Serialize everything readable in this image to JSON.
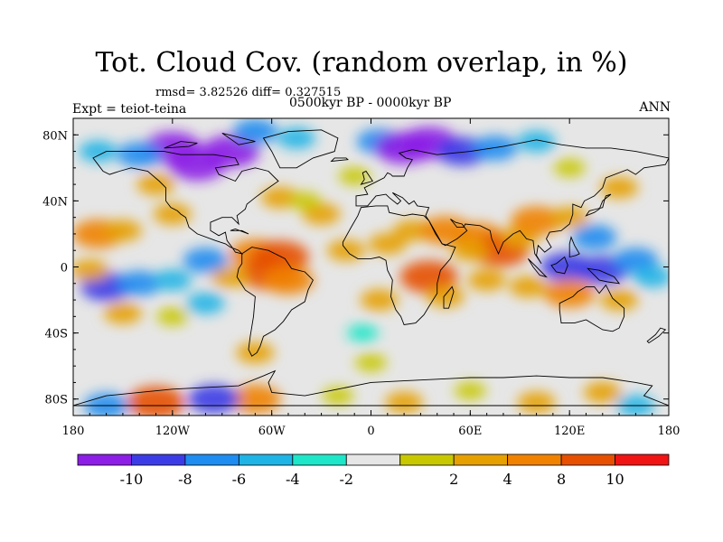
{
  "figure": {
    "title": "Tot. Cloud Cov. (random overlap, in %)",
    "stats": "rmsd= 3.82526 diff= 0.327515",
    "experiment": "Expt = teiot-teina",
    "period": "0500kyr BP - 0000kyr BP",
    "season": "ANN"
  },
  "map": {
    "projection": "cylindrical-equidistant",
    "lon_range": [
      -180,
      180
    ],
    "lat_range": [
      -90,
      90
    ],
    "lon_ticks": [
      {
        "value": -180,
        "label": "180"
      },
      {
        "value": -120,
        "label": "120W"
      },
      {
        "value": -60,
        "label": "60W"
      },
      {
        "value": 0,
        "label": "0"
      },
      {
        "value": 60,
        "label": "60E"
      },
      {
        "value": 120,
        "label": "120E"
      },
      {
        "value": 180,
        "label": "180"
      }
    ],
    "lat_ticks": [
      {
        "value": 80,
        "label": "80N"
      },
      {
        "value": 40,
        "label": "40N"
      },
      {
        "value": 0,
        "label": "0"
      },
      {
        "value": -40,
        "label": "40S"
      },
      {
        "value": -80,
        "label": "80S"
      }
    ],
    "neutral_color": "#e6e6e6",
    "coastline_color": "#000000"
  },
  "colorbar": {
    "colors": [
      "#8c1ee6",
      "#3c3ce6",
      "#1e8cf0",
      "#1eb4e6",
      "#1ee6c8",
      "#e6e6e6",
      "#c8c800",
      "#e6a000",
      "#f08200",
      "#e65000",
      "#f01414"
    ],
    "labels": [
      "-10",
      "-8",
      "-6",
      "-4",
      "-2",
      "2",
      "4",
      "8",
      "10"
    ]
  },
  "anomaly_field": [
    {
      "lon": -120,
      "lat": 72,
      "value": -10
    },
    {
      "lon": -105,
      "lat": 62,
      "value": -10
    },
    {
      "lon": -85,
      "lat": 70,
      "value": -10
    },
    {
      "lon": -140,
      "lat": 68,
      "value": -6
    },
    {
      "lon": -70,
      "lat": 82,
      "value": -6
    },
    {
      "lon": -45,
      "lat": 78,
      "value": -4
    },
    {
      "lon": 5,
      "lat": 76,
      "value": -6
    },
    {
      "lon": 20,
      "lat": 72,
      "value": -10
    },
    {
      "lon": 35,
      "lat": 75,
      "value": -10
    },
    {
      "lon": 55,
      "lat": 70,
      "value": -8
    },
    {
      "lon": 75,
      "lat": 72,
      "value": -6
    },
    {
      "lon": 100,
      "lat": 76,
      "value": -4
    },
    {
      "lon": -165,
      "lat": 70,
      "value": -4
    },
    {
      "lon": -130,
      "lat": 50,
      "value": 4
    },
    {
      "lon": -165,
      "lat": 20,
      "value": 8
    },
    {
      "lon": -150,
      "lat": 22,
      "value": 4
    },
    {
      "lon": -120,
      "lat": 32,
      "value": 4
    },
    {
      "lon": -55,
      "lat": 42,
      "value": 4
    },
    {
      "lon": -30,
      "lat": 32,
      "value": 4
    },
    {
      "lon": -40,
      "lat": 40,
      "value": 2
    },
    {
      "lon": -70,
      "lat": 8,
      "value": 8
    },
    {
      "lon": -55,
      "lat": 6,
      "value": 10
    },
    {
      "lon": -62,
      "lat": -4,
      "value": 10
    },
    {
      "lon": -50,
      "lat": -8,
      "value": 8
    },
    {
      "lon": -85,
      "lat": -6,
      "value": 4
    },
    {
      "lon": -100,
      "lat": 4,
      "value": -6
    },
    {
      "lon": -160,
      "lat": -12,
      "value": -8
    },
    {
      "lon": -140,
      "lat": -10,
      "value": -6
    },
    {
      "lon": -120,
      "lat": -8,
      "value": -4
    },
    {
      "lon": -170,
      "lat": -2,
      "value": 4
    },
    {
      "lon": -150,
      "lat": -28,
      "value": 4
    },
    {
      "lon": -120,
      "lat": -30,
      "value": 2
    },
    {
      "lon": -100,
      "lat": -22,
      "value": -4
    },
    {
      "lon": -15,
      "lat": 10,
      "value": 4
    },
    {
      "lon": 10,
      "lat": 14,
      "value": 4
    },
    {
      "lon": 25,
      "lat": 22,
      "value": 4
    },
    {
      "lon": 45,
      "lat": 22,
      "value": 8
    },
    {
      "lon": 65,
      "lat": 18,
      "value": 8
    },
    {
      "lon": 78,
      "lat": 10,
      "value": 10
    },
    {
      "lon": 60,
      "lat": 10,
      "value": 4
    },
    {
      "lon": 90,
      "lat": 18,
      "value": 4
    },
    {
      "lon": 100,
      "lat": 28,
      "value": 8
    },
    {
      "lon": 120,
      "lat": 30,
      "value": 4
    },
    {
      "lon": 118,
      "lat": 0,
      "value": -8
    },
    {
      "lon": 140,
      "lat": -2,
      "value": -8
    },
    {
      "lon": 160,
      "lat": 4,
      "value": -6
    },
    {
      "lon": 170,
      "lat": -6,
      "value": -4
    },
    {
      "lon": 135,
      "lat": 18,
      "value": -6
    },
    {
      "lon": 150,
      "lat": -20,
      "value": 4
    },
    {
      "lon": 120,
      "lat": -16,
      "value": 8
    },
    {
      "lon": 95,
      "lat": -12,
      "value": 4
    },
    {
      "lon": 70,
      "lat": -8,
      "value": 4
    },
    {
      "lon": 35,
      "lat": -6,
      "value": 10
    },
    {
      "lon": 45,
      "lat": -18,
      "value": 4
    },
    {
      "lon": 5,
      "lat": -20,
      "value": 4
    },
    {
      "lon": -5,
      "lat": -40,
      "value": -2
    },
    {
      "lon": -70,
      "lat": -52,
      "value": 4
    },
    {
      "lon": 0,
      "lat": -58,
      "value": 2
    },
    {
      "lon": -130,
      "lat": -82,
      "value": 10
    },
    {
      "lon": -70,
      "lat": -80,
      "value": 8
    },
    {
      "lon": -95,
      "lat": -80,
      "value": -8
    },
    {
      "lon": -160,
      "lat": -84,
      "value": -6
    },
    {
      "lon": 20,
      "lat": -82,
      "value": 4
    },
    {
      "lon": 100,
      "lat": -82,
      "value": 4
    },
    {
      "lon": 140,
      "lat": -76,
      "value": 4
    },
    {
      "lon": 160,
      "lat": -84,
      "value": -4
    },
    {
      "lon": -20,
      "lat": -78,
      "value": 2
    },
    {
      "lon": 60,
      "lat": -75,
      "value": 2
    },
    {
      "lon": 150,
      "lat": 48,
      "value": 4
    },
    {
      "lon": -10,
      "lat": 55,
      "value": 2
    },
    {
      "lon": 120,
      "lat": 60,
      "value": 2
    }
  ],
  "coastlines": [
    [
      [
        -168,
        66
      ],
      [
        -160,
        70
      ],
      [
        -140,
        70
      ],
      [
        -125,
        70
      ],
      [
        -115,
        68
      ],
      [
        -95,
        68
      ],
      [
        -82,
        66
      ],
      [
        -80,
        62
      ],
      [
        -94,
        60
      ],
      [
        -92,
        56
      ],
      [
        -82,
        52
      ],
      [
        -78,
        58
      ],
      [
        -70,
        60
      ],
      [
        -62,
        58
      ],
      [
        -56,
        52
      ],
      [
        -66,
        45
      ],
      [
        -70,
        42
      ],
      [
        -75,
        38
      ],
      [
        -76,
        35
      ],
      [
        -81,
        31
      ],
      [
        -80,
        26
      ],
      [
        -82,
        28
      ],
      [
        -84,
        30
      ],
      [
        -90,
        30
      ],
      [
        -97,
        27
      ],
      [
        -97,
        22
      ],
      [
        -92,
        19
      ],
      [
        -88,
        21
      ],
      [
        -87,
        16
      ],
      [
        -84,
        12
      ],
      [
        -82,
        9
      ],
      [
        -78,
        8
      ],
      [
        -80,
        10
      ],
      [
        -85,
        12
      ],
      [
        -88,
        14
      ],
      [
        -94,
        16
      ],
      [
        -105,
        20
      ],
      [
        -110,
        24
      ],
      [
        -112,
        30
      ],
      [
        -115,
        32
      ],
      [
        -117,
        34
      ],
      [
        -121,
        36
      ],
      [
        -124,
        40
      ],
      [
        -124,
        48
      ],
      [
        -128,
        52
      ],
      [
        -135,
        58
      ],
      [
        -145,
        60
      ],
      [
        -152,
        58
      ],
      [
        -158,
        56
      ],
      [
        -162,
        58
      ],
      [
        -165,
        62
      ],
      [
        -168,
        66
      ]
    ],
    [
      [
        -78,
        8
      ],
      [
        -72,
        12
      ],
      [
        -62,
        10
      ],
      [
        -52,
        5
      ],
      [
        -48,
        -1
      ],
      [
        -40,
        -3
      ],
      [
        -35,
        -8
      ],
      [
        -38,
        -14
      ],
      [
        -40,
        -21
      ],
      [
        -48,
        -26
      ],
      [
        -53,
        -33
      ],
      [
        -58,
        -38
      ],
      [
        -65,
        -42
      ],
      [
        -67,
        -48
      ],
      [
        -69,
        -52
      ],
      [
        -72,
        -54
      ],
      [
        -74,
        -50
      ],
      [
        -73,
        -42
      ],
      [
        -71,
        -30
      ],
      [
        -70,
        -18
      ],
      [
        -76,
        -14
      ],
      [
        -81,
        -6
      ],
      [
        -80,
        -1
      ],
      [
        -78,
        2
      ],
      [
        -78,
        8
      ]
    ],
    [
      [
        -17,
        15
      ],
      [
        -12,
        24
      ],
      [
        -8,
        31
      ],
      [
        -6,
        36
      ],
      [
        3,
        37
      ],
      [
        10,
        37
      ],
      [
        11,
        33
      ],
      [
        20,
        31
      ],
      [
        25,
        32
      ],
      [
        32,
        31
      ],
      [
        35,
        28
      ],
      [
        43,
        14
      ],
      [
        51,
        12
      ],
      [
        48,
        5
      ],
      [
        42,
        -2
      ],
      [
        40,
        -10
      ],
      [
        40,
        -16
      ],
      [
        35,
        -24
      ],
      [
        32,
        -29
      ],
      [
        27,
        -34
      ],
      [
        20,
        -35
      ],
      [
        18,
        -30
      ],
      [
        15,
        -26
      ],
      [
        12,
        -18
      ],
      [
        13,
        -8
      ],
      [
        10,
        -2
      ],
      [
        9,
        4
      ],
      [
        5,
        6
      ],
      [
        0,
        5
      ],
      [
        -8,
        5
      ],
      [
        -13,
        8
      ],
      [
        -17,
        13
      ],
      [
        -17,
        15
      ]
    ],
    [
      [
        -9,
        37
      ],
      [
        -9,
        43
      ],
      [
        -2,
        44
      ],
      [
        -4,
        48
      ],
      [
        2,
        51
      ],
      [
        8,
        54
      ],
      [
        10,
        57
      ],
      [
        12,
        56
      ],
      [
        13,
        55
      ],
      [
        20,
        55
      ],
      [
        22,
        60
      ],
      [
        25,
        65
      ],
      [
        21,
        66
      ],
      [
        17,
        69
      ],
      [
        25,
        71
      ],
      [
        40,
        68
      ],
      [
        60,
        70
      ],
      [
        80,
        73
      ],
      [
        100,
        77
      ],
      [
        115,
        74
      ],
      [
        130,
        72
      ],
      [
        145,
        72
      ],
      [
        160,
        70
      ],
      [
        170,
        68
      ],
      [
        180,
        66
      ],
      [
        178,
        62
      ],
      [
        165,
        60
      ],
      [
        160,
        56
      ],
      [
        155,
        59
      ],
      [
        142,
        54
      ],
      [
        140,
        48
      ],
      [
        135,
        43
      ],
      [
        129,
        40
      ],
      [
        127,
        36
      ],
      [
        122,
        38
      ],
      [
        122,
        32
      ],
      [
        120,
        26
      ],
      [
        115,
        22
      ],
      [
        108,
        21
      ],
      [
        106,
        17
      ],
      [
        109,
        12
      ],
      [
        105,
        9
      ],
      [
        101,
        13
      ],
      [
        100,
        7
      ],
      [
        103,
        2
      ],
      [
        99,
        8
      ],
      [
        98,
        16
      ],
      [
        94,
        17
      ],
      [
        90,
        22
      ],
      [
        86,
        20
      ],
      [
        80,
        15
      ],
      [
        77,
        8
      ],
      [
        73,
        17
      ],
      [
        72,
        22
      ],
      [
        66,
        25
      ],
      [
        57,
        26
      ],
      [
        56,
        24
      ],
      [
        52,
        24
      ],
      [
        48,
        29
      ],
      [
        51,
        27
      ],
      [
        55,
        26
      ],
      [
        58,
        22
      ],
      [
        52,
        17
      ],
      [
        45,
        13
      ],
      [
        43,
        14
      ],
      [
        39,
        20
      ],
      [
        35,
        28
      ],
      [
        33,
        31
      ],
      [
        35,
        36
      ],
      [
        28,
        37
      ],
      [
        26,
        40
      ],
      [
        23,
        38
      ],
      [
        19,
        42
      ],
      [
        13,
        45
      ],
      [
        18,
        40
      ],
      [
        16,
        38
      ],
      [
        11,
        42
      ],
      [
        9,
        44
      ],
      [
        3,
        43
      ],
      [
        -2,
        37
      ],
      [
        -9,
        37
      ]
    ],
    [
      [
        114,
        -22
      ],
      [
        114,
        -26
      ],
      [
        115,
        -34
      ],
      [
        123,
        -34
      ],
      [
        130,
        -32
      ],
      [
        135,
        -35
      ],
      [
        140,
        -38
      ],
      [
        146,
        -39
      ],
      [
        150,
        -37
      ],
      [
        153,
        -30
      ],
      [
        153,
        -25
      ],
      [
        146,
        -19
      ],
      [
        142,
        -11
      ],
      [
        138,
        -16
      ],
      [
        135,
        -12
      ],
      [
        130,
        -12
      ],
      [
        125,
        -15
      ],
      [
        122,
        -18
      ],
      [
        114,
        -22
      ]
    ],
    [
      [
        -55,
        60
      ],
      [
        -45,
        60
      ],
      [
        -35,
        66
      ],
      [
        -22,
        70
      ],
      [
        -20,
        78
      ],
      [
        -30,
        83
      ],
      [
        -50,
        82
      ],
      [
        -65,
        78
      ],
      [
        -60,
        70
      ],
      [
        -55,
        60
      ]
    ],
    [
      [
        -180,
        -84
      ],
      [
        -160,
        -78
      ],
      [
        -140,
        -76
      ],
      [
        -120,
        -74
      ],
      [
        -100,
        -73
      ],
      [
        -80,
        -72
      ],
      [
        -65,
        -66
      ],
      [
        -58,
        -63
      ],
      [
        -62,
        -70
      ],
      [
        -60,
        -76
      ],
      [
        -40,
        -78
      ],
      [
        -20,
        -74
      ],
      [
        0,
        -70
      ],
      [
        20,
        -69
      ],
      [
        40,
        -68
      ],
      [
        60,
        -67
      ],
      [
        80,
        -67
      ],
      [
        100,
        -66
      ],
      [
        120,
        -67
      ],
      [
        140,
        -67
      ],
      [
        160,
        -70
      ],
      [
        170,
        -72
      ],
      [
        165,
        -78
      ],
      [
        180,
        -84
      ]
    ],
    [
      [
        95,
        5
      ],
      [
        100,
        0
      ],
      [
        106,
        -6
      ],
      [
        102,
        -5
      ],
      [
        98,
        0
      ],
      [
        95,
        5
      ]
    ],
    [
      [
        109,
        1
      ],
      [
        112,
        -3
      ],
      [
        117,
        -4
      ],
      [
        119,
        1
      ],
      [
        117,
        6
      ],
      [
        112,
        2
      ],
      [
        109,
        1
      ]
    ],
    [
      [
        131,
        -1
      ],
      [
        138,
        -2
      ],
      [
        147,
        -6
      ],
      [
        150,
        -10
      ],
      [
        143,
        -9
      ],
      [
        138,
        -8
      ],
      [
        131,
        -1
      ]
    ],
    [
      [
        130,
        31
      ],
      [
        132,
        34
      ],
      [
        136,
        35
      ],
      [
        140,
        36
      ],
      [
        141,
        40
      ],
      [
        142,
        43
      ],
      [
        145,
        44
      ],
      [
        140,
        40
      ],
      [
        138,
        35
      ],
      [
        135,
        33
      ],
      [
        130,
        31
      ]
    ],
    [
      [
        -6,
        50
      ],
      [
        -4,
        53
      ],
      [
        -5,
        57
      ],
      [
        -3,
        58
      ],
      [
        -1,
        55
      ],
      [
        1,
        52
      ],
      [
        -6,
        50
      ]
    ],
    [
      [
        -24,
        64
      ],
      [
        -14,
        65
      ],
      [
        -15,
        66
      ],
      [
        -22,
        66
      ],
      [
        -24,
        64
      ]
    ],
    [
      [
        44,
        -25
      ],
      [
        47,
        -25
      ],
      [
        50,
        -15
      ],
      [
        49,
        -12
      ],
      [
        44,
        -18
      ],
      [
        44,
        -25
      ]
    ],
    [
      [
        172,
        -41
      ],
      [
        175,
        -37
      ],
      [
        178,
        -38
      ],
      [
        174,
        -42
      ],
      [
        168,
        -46
      ],
      [
        167,
        -45
      ],
      [
        172,
        -41
      ]
    ],
    [
      [
        -85,
        22
      ],
      [
        -78,
        22
      ],
      [
        -74,
        20
      ],
      [
        -82,
        23
      ],
      [
        -85,
        22
      ]
    ],
    [
      [
        120,
        6
      ],
      [
        124,
        7
      ],
      [
        126,
        8
      ],
      [
        123,
        13
      ],
      [
        121,
        18
      ],
      [
        120,
        14
      ],
      [
        120,
        6
      ]
    ],
    [
      [
        -80,
        74
      ],
      [
        -70,
        76
      ],
      [
        -90,
        81
      ],
      [
        -80,
        74
      ]
    ],
    [
      [
        -125,
        72
      ],
      [
        -110,
        73
      ],
      [
        -105,
        75
      ],
      [
        -115,
        76
      ],
      [
        -125,
        72
      ]
    ]
  ]
}
